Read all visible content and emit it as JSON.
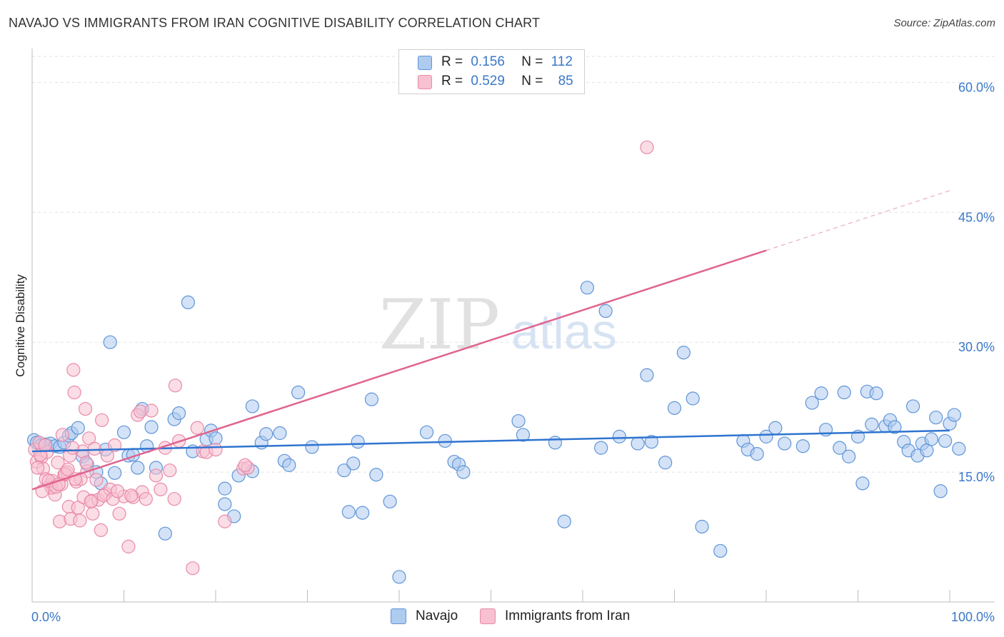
{
  "header": {
    "title": "NAVAJO VS IMMIGRANTS FROM IRAN COGNITIVE DISABILITY CORRELATION CHART",
    "source": "Source: ZipAtlas.com"
  },
  "legend": {
    "row1": {
      "r_label": "R =",
      "r_value": "0.156",
      "n_label": "N =",
      "n_value": "112"
    },
    "row2": {
      "r_label": "R =",
      "r_value": "0.529",
      "n_label": "N =",
      "n_value": "85"
    }
  },
  "bottom_legend": {
    "series1": "Navajo",
    "series2": "Immigrants from Iran"
  },
  "watermark": {
    "zip": "ZIP",
    "atlas": "atlas"
  },
  "colors": {
    "navajo_fill": "#aecbf0",
    "navajo_stroke": "#5f95d6",
    "navajo_line": "#2f74d0",
    "iran_fill": "#f7c1d1",
    "iran_stroke": "#e98aa9",
    "iran_line": "#e0648e",
    "axis_label": "#3a78c9"
  },
  "chart_data": {
    "type": "scatter",
    "title": "NAVAJO VS IMMIGRANTS FROM IRAN COGNITIVE DISABILITY CORRELATION CHART",
    "xlabel": "",
    "ylabel": "Cognitive Disability",
    "xlim": [
      0,
      100
    ],
    "ylim": [
      0,
      63
    ],
    "x_tick_labels": [
      "0.0%",
      "100.0%"
    ],
    "y_ticks": [
      15,
      30,
      45,
      60
    ],
    "y_tick_labels": [
      "15.0%",
      "30.0%",
      "45.0%",
      "60.0%"
    ],
    "grid": true,
    "series": [
      {
        "name": "Navajo",
        "R": 0.156,
        "N": 112,
        "trend": {
          "x": [
            0,
            100
          ],
          "y": [
            17.4,
            19.8
          ]
        },
        "points": [
          [
            0.2,
            18.7
          ],
          [
            0.5,
            18.4
          ],
          [
            1,
            18.1
          ],
          [
            1.5,
            18.2
          ],
          [
            2,
            18.3
          ],
          [
            2.5,
            18.0
          ],
          [
            3,
            17.9
          ],
          [
            3.5,
            18.4
          ],
          [
            4,
            19.2
          ],
          [
            4.3,
            19.5
          ],
          [
            5,
            20.1
          ],
          [
            5.5,
            16.8
          ],
          [
            6,
            15.9
          ],
          [
            7,
            15.0
          ],
          [
            7.5,
            13.7
          ],
          [
            8,
            17.6
          ],
          [
            8.5,
            30.0
          ],
          [
            9,
            14.9
          ],
          [
            10,
            19.6
          ],
          [
            10.5,
            16.9
          ],
          [
            11,
            17.0
          ],
          [
            11.5,
            15.5
          ],
          [
            12,
            22.3
          ],
          [
            12.5,
            18.0
          ],
          [
            13,
            20.2
          ],
          [
            13.5,
            15.5
          ],
          [
            14.5,
            7.9
          ],
          [
            15.5,
            21.1
          ],
          [
            16,
            21.8
          ],
          [
            17,
            34.6
          ],
          [
            17.5,
            17.4
          ],
          [
            19,
            18.8
          ],
          [
            19.5,
            19.8
          ],
          [
            20,
            18.9
          ],
          [
            21,
            13.1
          ],
          [
            21,
            11.3
          ],
          [
            22,
            9.9
          ],
          [
            22.5,
            14.6
          ],
          [
            24,
            22.6
          ],
          [
            24,
            15.1
          ],
          [
            25,
            18.4
          ],
          [
            25.5,
            19.4
          ],
          [
            27,
            19.5
          ],
          [
            27.5,
            16.3
          ],
          [
            28,
            15.8
          ],
          [
            29,
            24.2
          ],
          [
            30.5,
            17.9
          ],
          [
            34,
            15.2
          ],
          [
            34.5,
            10.4
          ],
          [
            35,
            16.0
          ],
          [
            35.5,
            18.5
          ],
          [
            36,
            10.3
          ],
          [
            37,
            23.4
          ],
          [
            37.5,
            14.7
          ],
          [
            39,
            11.6
          ],
          [
            40,
            2.9
          ],
          [
            43,
            19.6
          ],
          [
            45,
            18.6
          ],
          [
            46,
            16.2
          ],
          [
            46.5,
            15.9
          ],
          [
            53,
            20.9
          ],
          [
            53.5,
            19.3
          ],
          [
            57,
            18.4
          ],
          [
            58,
            9.3
          ],
          [
            60.5,
            36.3
          ],
          [
            62,
            17.8
          ],
          [
            62.5,
            33.6
          ],
          [
            64,
            19.1
          ],
          [
            66,
            18.3
          ],
          [
            67,
            26.2
          ],
          [
            67.5,
            18.5
          ],
          [
            69,
            16.1
          ],
          [
            70,
            22.4
          ],
          [
            71,
            28.8
          ],
          [
            72,
            23.5
          ],
          [
            73,
            8.7
          ],
          [
            75,
            5.9
          ],
          [
            77.5,
            18.6
          ],
          [
            78,
            17.6
          ],
          [
            79,
            17.1
          ],
          [
            80,
            19.1
          ],
          [
            81,
            20.1
          ],
          [
            82,
            18.3
          ],
          [
            84,
            18.0
          ],
          [
            85,
            23.0
          ],
          [
            86,
            24.1
          ],
          [
            86.5,
            19.9
          ],
          [
            88,
            17.8
          ],
          [
            88.5,
            24.2
          ],
          [
            89,
            16.8
          ],
          [
            90,
            19.1
          ],
          [
            90.5,
            13.7
          ],
          [
            91,
            24.3
          ],
          [
            91.5,
            20.5
          ],
          [
            92,
            24.1
          ],
          [
            93,
            20.3
          ],
          [
            93.5,
            21.0
          ],
          [
            94,
            20.2
          ],
          [
            95,
            18.5
          ],
          [
            95.5,
            17.5
          ],
          [
            96,
            22.6
          ],
          [
            96.5,
            16.9
          ],
          [
            97,
            18.3
          ],
          [
            97.5,
            17.5
          ],
          [
            98,
            18.8
          ],
          [
            99,
            12.8
          ],
          [
            99.5,
            18.6
          ],
          [
            100,
            20.6
          ],
          [
            100.5,
            21.6
          ],
          [
            101,
            17.7
          ],
          [
            98.5,
            21.3
          ],
          [
            47,
            15.0
          ]
        ]
      },
      {
        "name": "Immigrants from Iran",
        "R": 0.529,
        "N": 85,
        "trend": {
          "x": [
            0,
            80
          ],
          "y": [
            13.0,
            40.6
          ],
          "dashed_to": {
            "x": 100,
            "y": 47.5
          }
        },
        "points": [
          [
            0.3,
            17.6
          ],
          [
            0.5,
            16.2
          ],
          [
            0.8,
            18.4
          ],
          [
            1,
            16.7
          ],
          [
            1.2,
            15.4
          ],
          [
            1.5,
            14.2
          ],
          [
            1.6,
            17.3
          ],
          [
            2,
            13.5
          ],
          [
            2.2,
            14.0
          ],
          [
            2.5,
            12.4
          ],
          [
            2.8,
            16.1
          ],
          [
            3,
            9.3
          ],
          [
            3.2,
            13.6
          ],
          [
            3.5,
            14.7
          ],
          [
            3.8,
            15.0
          ],
          [
            4,
            11.0
          ],
          [
            4.2,
            9.6
          ],
          [
            4.5,
            26.8
          ],
          [
            4.6,
            24.2
          ],
          [
            4.8,
            13.9
          ],
          [
            5,
            10.9
          ],
          [
            5.2,
            9.4
          ],
          [
            5.5,
            17.4
          ],
          [
            5.6,
            12.1
          ],
          [
            5.8,
            22.3
          ],
          [
            6,
            15.1
          ],
          [
            6.2,
            18.9
          ],
          [
            6.5,
            11.7
          ],
          [
            6.6,
            10.2
          ],
          [
            7,
            14.1
          ],
          [
            7.2,
            11.8
          ],
          [
            7.5,
            8.3
          ],
          [
            7.6,
            21.0
          ],
          [
            8,
            12.5
          ],
          [
            8.2,
            16.9
          ],
          [
            8.5,
            13.0
          ],
          [
            9,
            18.1
          ],
          [
            9.5,
            10.2
          ],
          [
            10,
            12.2
          ],
          [
            10.5,
            6.4
          ],
          [
            11,
            12.1
          ],
          [
            11.5,
            21.6
          ],
          [
            11.8,
            22.0
          ],
          [
            12,
            12.7
          ],
          [
            13,
            22.1
          ],
          [
            13.5,
            14.6
          ],
          [
            14,
            13.0
          ],
          [
            14.5,
            17.8
          ],
          [
            15,
            15.2
          ],
          [
            15.5,
            11.9
          ],
          [
            15.6,
            25.0
          ],
          [
            16,
            18.6
          ],
          [
            17.5,
            3.9
          ],
          [
            18,
            20.1
          ],
          [
            18.6,
            17.4
          ],
          [
            19,
            17.3
          ],
          [
            20,
            17.6
          ],
          [
            21,
            9.3
          ],
          [
            23,
            15.4
          ],
          [
            23.5,
            15.5
          ],
          [
            67,
            52.5
          ],
          [
            2.1,
            13.2
          ],
          [
            1.8,
            14.0
          ],
          [
            0.9,
            17.0
          ],
          [
            3.3,
            19.3
          ],
          [
            4.1,
            16.9
          ],
          [
            5.3,
            14.2
          ],
          [
            6.4,
            11.6
          ],
          [
            7.8,
            12.3
          ],
          [
            8.8,
            11.9
          ],
          [
            2.6,
            13.3
          ],
          [
            3.6,
            14.8
          ],
          [
            4.4,
            17.8
          ],
          [
            1.4,
            18.1
          ],
          [
            0.6,
            15.5
          ],
          [
            2.9,
            13.6
          ],
          [
            3.9,
            15.3
          ],
          [
            5.9,
            16.1
          ],
          [
            6.8,
            17.7
          ],
          [
            9.3,
            12.8
          ],
          [
            10.8,
            12.3
          ],
          [
            12.4,
            11.9
          ],
          [
            1.1,
            12.8
          ],
          [
            4.7,
            14.2
          ],
          [
            23.2,
            15.8
          ]
        ]
      }
    ]
  }
}
